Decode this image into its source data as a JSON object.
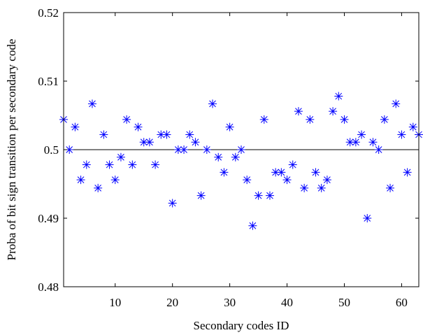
{
  "chart_data": {
    "type": "scatter",
    "title": "",
    "xlabel": "Secondary codes ID",
    "ylabel": "Proba of bit sign transition per secondary code",
    "xlim": [
      1,
      63
    ],
    "ylim": [
      0.48,
      0.52
    ],
    "xticks": [
      10,
      20,
      30,
      40,
      50,
      60
    ],
    "xtick_labels": [
      "10",
      "20",
      "30",
      "40",
      "50",
      "60"
    ],
    "yticks": [
      0.48,
      0.49,
      0.5,
      0.51,
      0.52
    ],
    "ytick_labels": [
      "0.48",
      "0.49",
      "0.5",
      "0.51",
      "0.52"
    ],
    "grid": false,
    "marker": "asterisk",
    "marker_color": "#0000ff",
    "reference_line": {
      "y": 0.5,
      "color": "#000000"
    },
    "series": [
      {
        "x": [
          1,
          2,
          3,
          4,
          5,
          6,
          7,
          8,
          9,
          10,
          11,
          12,
          13,
          14,
          15,
          16,
          17,
          18,
          19,
          20,
          21,
          22,
          23,
          24,
          25,
          26,
          27,
          28,
          29,
          30,
          31,
          32,
          33,
          34,
          35,
          36,
          37,
          38,
          39,
          40,
          41,
          42,
          43,
          44,
          45,
          46,
          47,
          48,
          49,
          50,
          51,
          52,
          53,
          54,
          55,
          56,
          57,
          58,
          59,
          60,
          61,
          62,
          63
        ],
        "y": [
          0.5044,
          0.5,
          0.5033,
          0.4956,
          0.4978,
          0.5067,
          0.4944,
          0.5022,
          0.4978,
          0.4956,
          0.4989,
          0.5044,
          0.4978,
          0.5033,
          0.5011,
          0.5011,
          0.4978,
          0.5022,
          0.5022,
          0.4922,
          0.5,
          0.5,
          0.5022,
          0.5011,
          0.4933,
          0.5,
          0.5067,
          0.4989,
          0.4967,
          0.5033,
          0.4989,
          0.5,
          0.4956,
          0.4889,
          0.4933,
          0.5044,
          0.4933,
          0.4967,
          0.4967,
          0.4956,
          0.4978,
          0.5056,
          0.4944,
          0.5044,
          0.4967,
          0.4944,
          0.4956,
          0.5056,
          0.5078,
          0.5044,
          0.5011,
          0.5011,
          0.5022,
          0.49,
          0.5011,
          0.5,
          0.5044,
          0.4944,
          0.5067,
          0.5022,
          0.4967,
          0.5033,
          0.5022
        ]
      }
    ]
  }
}
